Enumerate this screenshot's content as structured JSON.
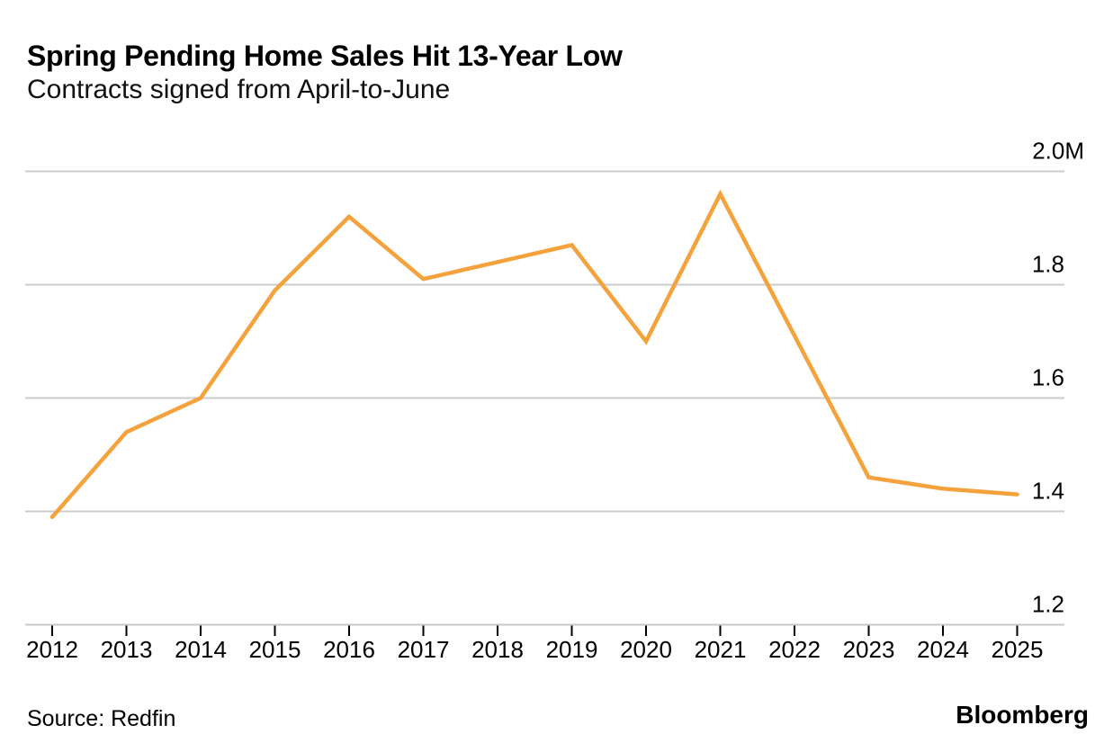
{
  "page": {
    "title": "Spring Pending Home Sales Hit 13-Year Low",
    "subtitle": "Contracts signed from April-to-June",
    "source": "Source: Redfin",
    "brand": "Bloomberg"
  },
  "colors": {
    "line": "#F5A23C",
    "grid": "#CCCCCC",
    "axis": "#C8C8C8",
    "tick": "#000000",
    "text": "#000000"
  },
  "chart_data": {
    "type": "line",
    "title": "Spring Pending Home Sales Hit 13-Year Low",
    "subtitle": "Contracts signed from April-to-June",
    "x": [
      "2012",
      "2013",
      "2014",
      "2015",
      "2016",
      "2017",
      "2018",
      "2019",
      "2020",
      "2021",
      "2022",
      "2023",
      "2024",
      "2025"
    ],
    "series": [
      {
        "name": "Contracts signed April-to-June",
        "values": [
          1.39,
          1.54,
          1.6,
          1.79,
          1.92,
          1.81,
          1.84,
          1.87,
          1.7,
          1.96,
          1.71,
          1.46,
          1.44,
          1.43
        ]
      }
    ],
    "unit": "M",
    "ylabel": "",
    "xlabel": "",
    "ylim": [
      1.2,
      2.0
    ],
    "yticks": [
      {
        "value": 2.0,
        "label": "2.0M"
      },
      {
        "value": 1.8,
        "label": "1.8"
      },
      {
        "value": 1.6,
        "label": "1.6"
      },
      {
        "value": 1.4,
        "label": "1.4"
      },
      {
        "value": 1.2,
        "label": "1.2"
      }
    ],
    "grid": true,
    "legend": "none",
    "line_color": "#F5A23C",
    "source": "Redfin"
  }
}
